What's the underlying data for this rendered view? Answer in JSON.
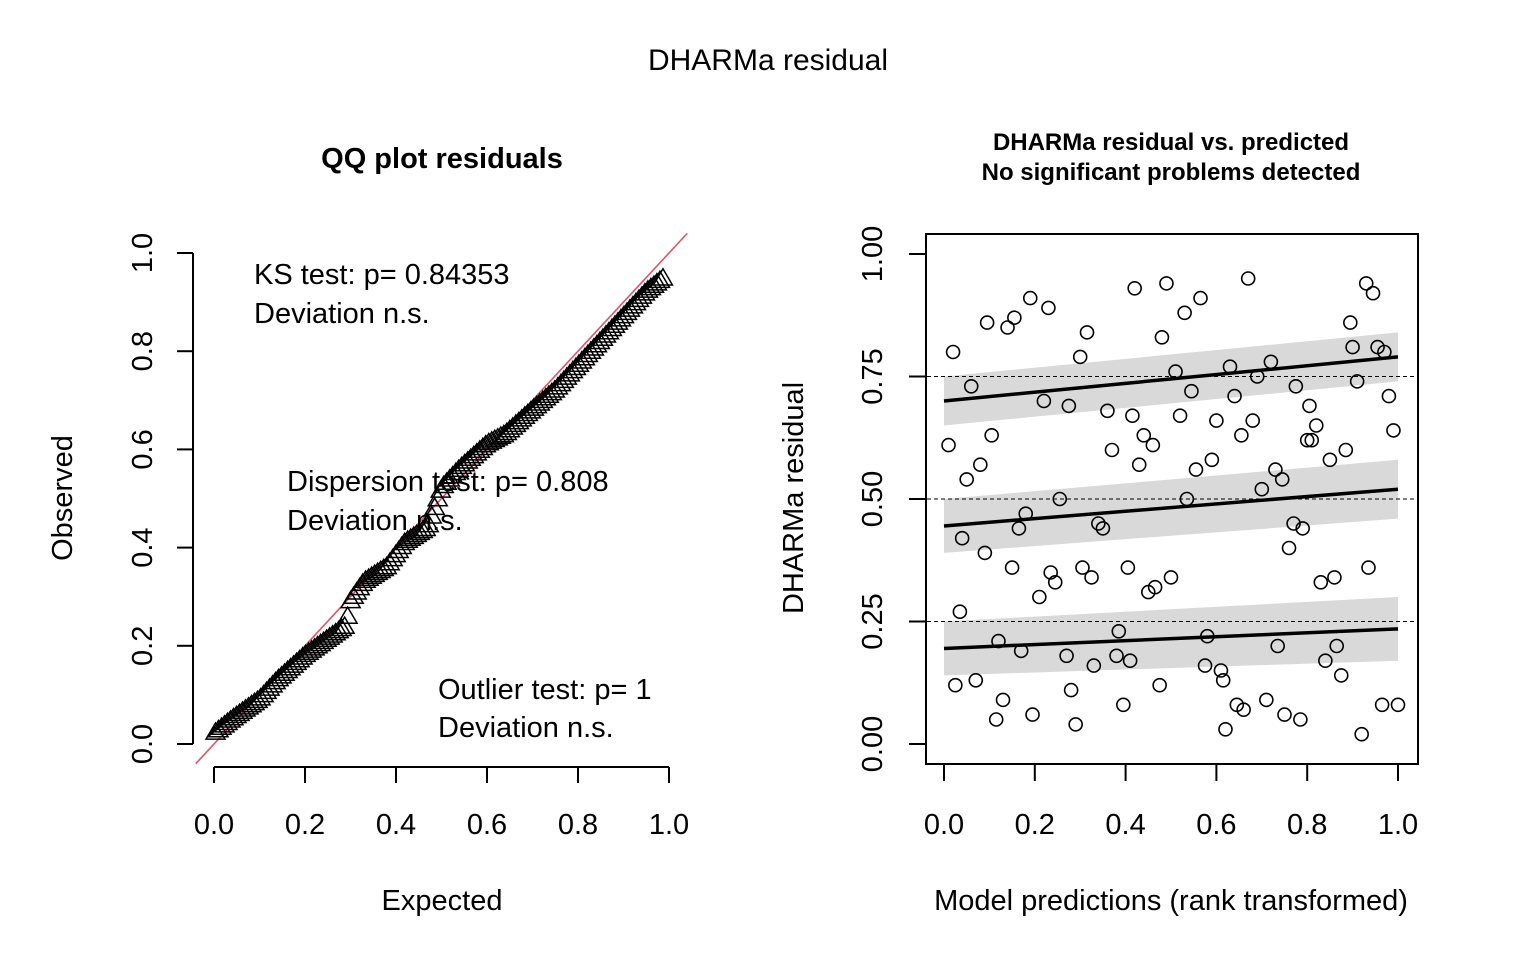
{
  "figure": {
    "title": "DHARMa residual"
  },
  "chart_data": [
    {
      "type": "scatter",
      "title": "QQ plot residuals",
      "xlabel": "Expected",
      "ylabel": "Observed",
      "xlim": [
        0,
        1
      ],
      "ylim": [
        0,
        1
      ],
      "xticks": [
        "0.0",
        "0.2",
        "0.4",
        "0.6",
        "0.8",
        "1.0"
      ],
      "yticks": [
        "0.0",
        "0.2",
        "0.4",
        "0.6",
        "0.8",
        "1.0"
      ],
      "reference_line": {
        "slope": 1,
        "intercept": 0,
        "color": "#DF536B"
      },
      "marker": "triangle-open",
      "annotations": {
        "ks": {
          "line1": "KS test: p= 0.84353",
          "line2": "Deviation  n.s."
        },
        "dispersion": {
          "line1": "Dispersion test: p= 0.808",
          "line2": "Deviation  n.s."
        },
        "outlier": {
          "line1": "Outlier test: p= 1",
          "line2": "Deviation  n.s."
        }
      },
      "knots": [
        [
          0.0,
          0.02
        ],
        [
          0.04,
          0.05
        ],
        [
          0.1,
          0.09
        ],
        [
          0.14,
          0.13
        ],
        [
          0.2,
          0.18
        ],
        [
          0.26,
          0.22
        ],
        [
          0.29,
          0.24
        ],
        [
          0.3,
          0.29
        ],
        [
          0.33,
          0.33
        ],
        [
          0.38,
          0.36
        ],
        [
          0.42,
          0.41
        ],
        [
          0.47,
          0.44
        ],
        [
          0.5,
          0.52
        ],
        [
          0.54,
          0.56
        ],
        [
          0.6,
          0.61
        ],
        [
          0.64,
          0.63
        ],
        [
          0.7,
          0.68
        ],
        [
          0.75,
          0.72
        ],
        [
          0.8,
          0.77
        ],
        [
          0.85,
          0.82
        ],
        [
          0.9,
          0.87
        ],
        [
          0.95,
          0.92
        ],
        [
          0.99,
          0.95
        ]
      ],
      "n_points": 150
    },
    {
      "type": "scatter",
      "title": "DHARMa residual vs. predicted",
      "subtitle": "No significant problems detected",
      "xlabel": "Model predictions (rank transformed)",
      "ylabel": "DHARMa residual",
      "xlim": [
        0,
        1
      ],
      "ylim": [
        0,
        1
      ],
      "xticks": [
        "0.0",
        "0.2",
        "0.4",
        "0.6",
        "0.8",
        "1.0"
      ],
      "yticks": [
        "0.00",
        "0.25",
        "0.50",
        "0.75",
        "1.00"
      ],
      "reference_lines": [
        0.25,
        0.5,
        0.75
      ],
      "quantile_fits": [
        {
          "y0": 0.7,
          "y1": 0.79,
          "lo0": 0.65,
          "hi0": 0.75,
          "lo1": 0.74,
          "hi1": 0.84
        },
        {
          "y0": 0.445,
          "y1": 0.52,
          "lo0": 0.39,
          "hi0": 0.5,
          "lo1": 0.46,
          "hi1": 0.58
        },
        {
          "y0": 0.195,
          "y1": 0.235,
          "lo0": 0.14,
          "hi0": 0.25,
          "lo1": 0.17,
          "hi1": 0.3
        }
      ],
      "points": [
        [
          0.01,
          0.61
        ],
        [
          0.02,
          0.8
        ],
        [
          0.025,
          0.12
        ],
        [
          0.035,
          0.27
        ],
        [
          0.04,
          0.42
        ],
        [
          0.05,
          0.54
        ],
        [
          0.06,
          0.73
        ],
        [
          0.07,
          0.13
        ],
        [
          0.08,
          0.57
        ],
        [
          0.09,
          0.39
        ],
        [
          0.095,
          0.86
        ],
        [
          0.105,
          0.63
        ],
        [
          0.115,
          0.05
        ],
        [
          0.12,
          0.21
        ],
        [
          0.13,
          0.09
        ],
        [
          0.14,
          0.85
        ],
        [
          0.15,
          0.36
        ],
        [
          0.155,
          0.87
        ],
        [
          0.165,
          0.44
        ],
        [
          0.17,
          0.19
        ],
        [
          0.18,
          0.47
        ],
        [
          0.19,
          0.91
        ],
        [
          0.195,
          0.06
        ],
        [
          0.21,
          0.3
        ],
        [
          0.22,
          0.7
        ],
        [
          0.23,
          0.89
        ],
        [
          0.235,
          0.35
        ],
        [
          0.245,
          0.33
        ],
        [
          0.255,
          0.5
        ],
        [
          0.27,
          0.18
        ],
        [
          0.275,
          0.69
        ],
        [
          0.28,
          0.11
        ],
        [
          0.29,
          0.04
        ],
        [
          0.3,
          0.79
        ],
        [
          0.305,
          0.36
        ],
        [
          0.315,
          0.84
        ],
        [
          0.325,
          0.34
        ],
        [
          0.33,
          0.16
        ],
        [
          0.34,
          0.45
        ],
        [
          0.35,
          0.44
        ],
        [
          0.36,
          0.68
        ],
        [
          0.37,
          0.6
        ],
        [
          0.38,
          0.18
        ],
        [
          0.385,
          0.23
        ],
        [
          0.395,
          0.08
        ],
        [
          0.405,
          0.36
        ],
        [
          0.41,
          0.17
        ],
        [
          0.415,
          0.67
        ],
        [
          0.42,
          0.93
        ],
        [
          0.43,
          0.57
        ],
        [
          0.44,
          0.63
        ],
        [
          0.45,
          0.31
        ],
        [
          0.46,
          0.61
        ],
        [
          0.465,
          0.32
        ],
        [
          0.475,
          0.12
        ],
        [
          0.48,
          0.83
        ],
        [
          0.49,
          0.94
        ],
        [
          0.5,
          0.34
        ],
        [
          0.51,
          0.76
        ],
        [
          0.52,
          0.67
        ],
        [
          0.53,
          0.88
        ],
        [
          0.535,
          0.5
        ],
        [
          0.545,
          0.72
        ],
        [
          0.555,
          0.56
        ],
        [
          0.565,
          0.91
        ],
        [
          0.575,
          0.16
        ],
        [
          0.58,
          0.22
        ],
        [
          0.59,
          0.58
        ],
        [
          0.6,
          0.66
        ],
        [
          0.61,
          0.15
        ],
        [
          0.615,
          0.13
        ],
        [
          0.62,
          0.03
        ],
        [
          0.63,
          0.77
        ],
        [
          0.64,
          0.71
        ],
        [
          0.645,
          0.08
        ],
        [
          0.655,
          0.63
        ],
        [
          0.66,
          0.07
        ],
        [
          0.67,
          0.95
        ],
        [
          0.68,
          0.66
        ],
        [
          0.69,
          0.75
        ],
        [
          0.7,
          0.52
        ],
        [
          0.71,
          0.09
        ],
        [
          0.72,
          0.78
        ],
        [
          0.73,
          0.56
        ],
        [
          0.735,
          0.2
        ],
        [
          0.745,
          0.54
        ],
        [
          0.75,
          0.06
        ],
        [
          0.76,
          0.4
        ],
        [
          0.77,
          0.45
        ],
        [
          0.775,
          0.73
        ],
        [
          0.785,
          0.05
        ],
        [
          0.79,
          0.44
        ],
        [
          0.8,
          0.62
        ],
        [
          0.805,
          0.69
        ],
        [
          0.81,
          0.62
        ],
        [
          0.82,
          0.65
        ],
        [
          0.83,
          0.33
        ],
        [
          0.84,
          0.17
        ],
        [
          0.85,
          0.58
        ],
        [
          0.86,
          0.34
        ],
        [
          0.865,
          0.2
        ],
        [
          0.875,
          0.14
        ],
        [
          0.885,
          0.6
        ],
        [
          0.895,
          0.86
        ],
        [
          0.9,
          0.81
        ],
        [
          0.91,
          0.74
        ],
        [
          0.92,
          0.02
        ],
        [
          0.93,
          0.94
        ],
        [
          0.935,
          0.36
        ],
        [
          0.945,
          0.92
        ],
        [
          0.955,
          0.81
        ],
        [
          0.965,
          0.08
        ],
        [
          0.97,
          0.8
        ],
        [
          0.98,
          0.71
        ],
        [
          0.99,
          0.64
        ],
        [
          1.0,
          0.08
        ]
      ]
    }
  ]
}
